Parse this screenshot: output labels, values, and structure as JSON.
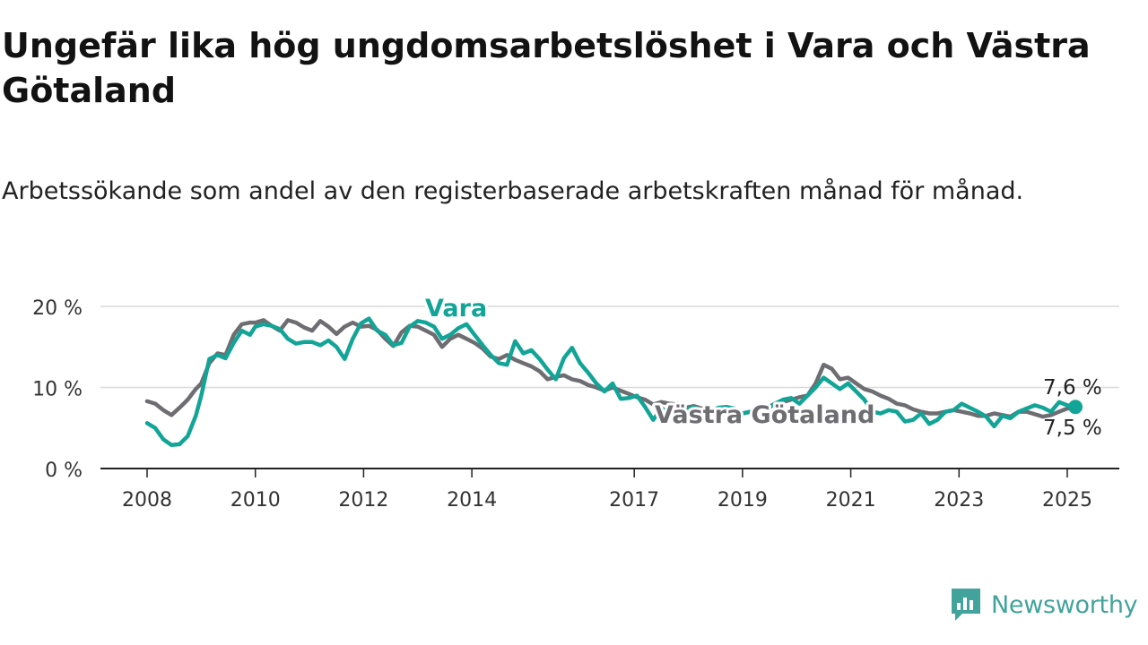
{
  "title": "Ungefär lika hög ungdomsarbetslöshet i Vara och Västra Götaland",
  "subtitle": "Arbetssökande som andel av den registerbaserade arbetskraften månad för månad.",
  "brand": {
    "name": "Newsworthy",
    "color": "#41a39b"
  },
  "colors": {
    "vara": "#12a597",
    "vastra": "#6d6d72",
    "grid": "#d9d9d9",
    "axis": "#222222"
  },
  "chart_data": {
    "type": "line",
    "title": "Ungefär lika hög ungdomsarbetslöshet i Vara och Västra Götaland",
    "subtitle": "Arbetssökande som andel av den registerbaserade arbetskraften månad för månad.",
    "xlabel": "",
    "ylabel": "",
    "xlim": [
      2007.6,
      2025.95
    ],
    "ylim": [
      0,
      20
    ],
    "yticks": [
      0,
      10,
      20
    ],
    "ytick_labels": [
      "0 %",
      "10 %",
      "20 %"
    ],
    "xticks": [
      2008,
      2010,
      2012,
      2014,
      2017,
      2019,
      2021,
      2023,
      2025
    ],
    "xtick_labels": [
      "2008",
      "2010",
      "2012",
      "2014",
      "2017",
      "2019",
      "2021",
      "2023",
      "2025"
    ],
    "grid": "horizontal",
    "legend": "inline labels",
    "series": [
      {
        "name": "Vara",
        "color": "#12a597",
        "end_label": "7,6 %",
        "x": [
          2008.0,
          2008.15,
          2008.3,
          2008.45,
          2008.6,
          2008.75,
          2008.9,
          2009.0,
          2009.15,
          2009.3,
          2009.45,
          2009.6,
          2009.75,
          2009.9,
          2010.0,
          2010.15,
          2010.3,
          2010.45,
          2010.6,
          2010.75,
          2010.9,
          2011.05,
          2011.2,
          2011.35,
          2011.5,
          2011.65,
          2011.8,
          2011.95,
          2012.1,
          2012.25,
          2012.4,
          2012.55,
          2012.7,
          2012.85,
          2013.0,
          2013.15,
          2013.3,
          2013.45,
          2013.6,
          2013.75,
          2013.9,
          2014.05,
          2014.2,
          2014.35,
          2014.5,
          2014.65,
          2014.8,
          2014.95,
          2015.1,
          2015.25,
          2015.4,
          2015.55,
          2015.7,
          2015.85,
          2016.0,
          2016.15,
          2016.3,
          2016.45,
          2016.6,
          2016.75,
          2016.9,
          2017.05,
          2017.2,
          2017.35,
          2017.5,
          2017.65,
          2017.8,
          2017.95,
          2018.1,
          2018.25,
          2018.4,
          2018.55,
          2018.7,
          2018.85,
          2019.0,
          2019.15,
          2019.3,
          2019.45,
          2019.6,
          2019.75,
          2019.9,
          2020.05,
          2020.2,
          2020.35,
          2020.5,
          2020.65,
          2020.8,
          2020.95,
          2021.1,
          2021.25,
          2021.4,
          2021.55,
          2021.7,
          2021.85,
          2022.0,
          2022.15,
          2022.3,
          2022.45,
          2022.6,
          2022.75,
          2022.9,
          2023.05,
          2023.2,
          2023.35,
          2023.5,
          2023.65,
          2023.8,
          2023.95,
          2024.1,
          2024.25,
          2024.4,
          2024.55,
          2024.7,
          2024.85,
          2025.0,
          2025.15
        ],
        "values": [
          5.6,
          5.0,
          3.6,
          2.9,
          3.0,
          4.0,
          6.5,
          9.0,
          13.5,
          14.0,
          13.6,
          15.5,
          17.0,
          16.5,
          17.5,
          17.8,
          17.6,
          17.2,
          16.0,
          15.4,
          15.6,
          15.6,
          15.2,
          15.8,
          15.0,
          13.5,
          16.0,
          17.9,
          18.5,
          17.0,
          16.5,
          15.2,
          15.5,
          17.5,
          18.2,
          18.0,
          17.5,
          16.0,
          16.5,
          17.3,
          17.8,
          16.5,
          15.2,
          14.0,
          13.0,
          12.8,
          15.7,
          14.2,
          14.6,
          13.5,
          12.2,
          11.0,
          13.6,
          14.9,
          13.0,
          11.8,
          10.5,
          9.5,
          10.5,
          8.6,
          8.7,
          9.0,
          7.6,
          6.0,
          7.4,
          7.0,
          8.0,
          7.2,
          7.6,
          7.0,
          6.8,
          7.5,
          7.6,
          7.4,
          6.8,
          7.0,
          7.5,
          7.3,
          8.0,
          8.5,
          8.7,
          8.0,
          9.0,
          10.0,
          11.2,
          10.5,
          9.8,
          10.5,
          9.5,
          8.5,
          7.0,
          6.8,
          7.2,
          7.0,
          5.8,
          6.0,
          6.8,
          5.5,
          6.0,
          7.0,
          7.2,
          8.0,
          7.5,
          7.0,
          6.4,
          5.2,
          6.5,
          6.2,
          7.0,
          7.4,
          7.8,
          7.5,
          7.0,
          8.2,
          7.8,
          7.6
        ]
      },
      {
        "name": "Västra Götaland",
        "color": "#6d6d72",
        "end_label": "7,5 %",
        "x": [
          2008.0,
          2008.15,
          2008.3,
          2008.45,
          2008.6,
          2008.75,
          2008.9,
          2009.0,
          2009.15,
          2009.3,
          2009.45,
          2009.6,
          2009.75,
          2009.9,
          2010.0,
          2010.15,
          2010.3,
          2010.45,
          2010.6,
          2010.75,
          2010.9,
          2011.05,
          2011.2,
          2011.35,
          2011.5,
          2011.65,
          2011.8,
          2011.95,
          2012.1,
          2012.25,
          2012.4,
          2012.55,
          2012.7,
          2012.85,
          2013.0,
          2013.15,
          2013.3,
          2013.45,
          2013.6,
          2013.75,
          2013.9,
          2014.05,
          2014.2,
          2014.35,
          2014.5,
          2014.65,
          2014.8,
          2014.95,
          2015.1,
          2015.25,
          2015.4,
          2015.55,
          2015.7,
          2015.85,
          2016.0,
          2016.15,
          2016.3,
          2016.45,
          2016.6,
          2016.75,
          2016.9,
          2017.05,
          2017.2,
          2017.35,
          2017.5,
          2017.65,
          2017.8,
          2017.95,
          2018.1,
          2018.25,
          2018.4,
          2018.55,
          2018.7,
          2018.85,
          2019.0,
          2019.15,
          2019.3,
          2019.45,
          2019.6,
          2019.75,
          2019.9,
          2020.05,
          2020.2,
          2020.35,
          2020.5,
          2020.65,
          2020.8,
          2020.95,
          2021.1,
          2021.25,
          2021.4,
          2021.55,
          2021.7,
          2021.85,
          2022.0,
          2022.15,
          2022.3,
          2022.45,
          2022.6,
          2022.75,
          2022.9,
          2023.05,
          2023.2,
          2023.35,
          2023.5,
          2023.65,
          2023.8,
          2023.95,
          2024.1,
          2024.25,
          2024.4,
          2024.55,
          2024.7,
          2024.85,
          2025.0,
          2025.15
        ],
        "values": [
          8.3,
          8.0,
          7.2,
          6.6,
          7.5,
          8.5,
          9.8,
          10.5,
          13.0,
          14.2,
          14.0,
          16.5,
          17.8,
          18.0,
          18.0,
          18.3,
          17.6,
          17.0,
          18.3,
          18.0,
          17.4,
          17.0,
          18.2,
          17.5,
          16.6,
          17.5,
          18.0,
          17.5,
          17.6,
          17.1,
          16.0,
          15.1,
          16.8,
          17.6,
          17.5,
          17.0,
          16.5,
          15.0,
          16.0,
          16.5,
          16.0,
          15.5,
          14.8,
          13.8,
          13.5,
          14.0,
          13.4,
          13.0,
          12.6,
          12.0,
          11.0,
          11.3,
          11.5,
          11.0,
          10.8,
          10.3,
          10.0,
          9.6,
          10.0,
          9.6,
          9.2,
          8.8,
          8.5,
          7.9,
          8.2,
          8.0,
          7.9,
          7.5,
          7.7,
          7.4,
          7.2,
          7.0,
          7.2,
          6.9,
          6.8,
          7.0,
          7.3,
          7.5,
          8.0,
          8.2,
          8.5,
          8.8,
          9.0,
          10.5,
          12.8,
          12.3,
          11.0,
          11.2,
          10.5,
          9.8,
          9.5,
          9.0,
          8.6,
          8.0,
          7.8,
          7.3,
          7.0,
          6.8,
          6.8,
          7.0,
          7.2,
          7.0,
          6.8,
          6.5,
          6.5,
          6.8,
          6.6,
          6.4,
          7.0,
          7.0,
          6.7,
          6.4,
          6.6,
          7.0,
          7.4,
          7.5
        ]
      }
    ]
  }
}
